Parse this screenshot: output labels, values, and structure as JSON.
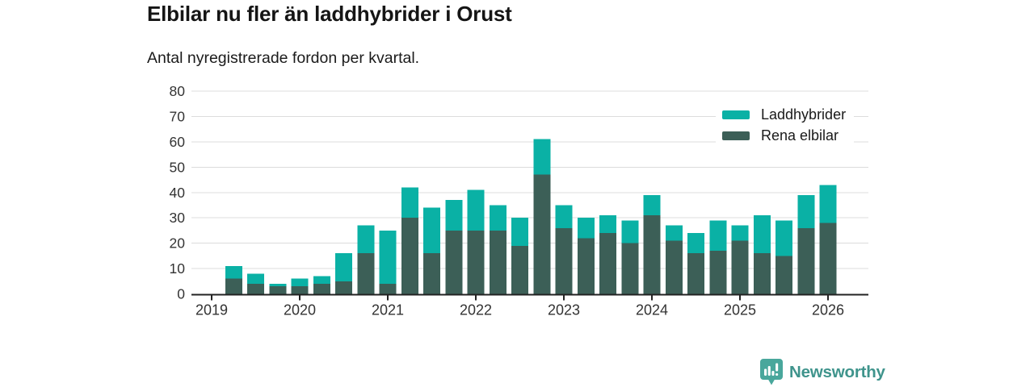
{
  "header": {
    "title": "Elbilar nu fler än laddhybrider i Orust",
    "subtitle": "Antal nyregistrerade fordon per kvartal."
  },
  "legend": {
    "items": [
      {
        "label": "Laddhybrider",
        "color": "#0AB1A5"
      },
      {
        "label": "Rena elbilar",
        "color": "#3C5F57"
      }
    ]
  },
  "footer": {
    "brand": "Newsworthy"
  },
  "colors": {
    "laddhybrider": "#0AB1A5",
    "rena_elbilar": "#3C5F57",
    "grid": "#DCDCDC",
    "axis": "#222222",
    "axis_text": "#333333",
    "title_text": "#151515",
    "brand_text": "#3F948C",
    "brand_badge": "#49A79C"
  },
  "chart_data": {
    "type": "bar",
    "stacked": true,
    "title": "Elbilar nu fler än laddhybrider i Orust",
    "subtitle": "Antal nyregistrerade fordon per kvartal.",
    "xlabel": "",
    "ylabel": "",
    "ylim": [
      0,
      80
    ],
    "yticks": [
      0,
      10,
      20,
      30,
      40,
      50,
      60,
      70,
      80
    ],
    "xticks": [
      "2019",
      "2020",
      "2021",
      "2022",
      "2023",
      "2024",
      "2025",
      "2026"
    ],
    "grid": true,
    "legend_position": "top-right",
    "categories": [
      "2019 Q2",
      "2019 Q3",
      "2019 Q4",
      "2020 Q1",
      "2020 Q2",
      "2020 Q3",
      "2020 Q4",
      "2021 Q1",
      "2021 Q2",
      "2021 Q3",
      "2021 Q4",
      "2022 Q1",
      "2022 Q2",
      "2022 Q3",
      "2022 Q4",
      "2023 Q1",
      "2023 Q2",
      "2023 Q3",
      "2023 Q4",
      "2024 Q1",
      "2024 Q2",
      "2024 Q3",
      "2024 Q4",
      "2025 Q1",
      "2025 Q2",
      "2025 Q3",
      "2025 Q4",
      "2026 Q1"
    ],
    "series": [
      {
        "name": "Rena elbilar",
        "color": "#3C5F57",
        "values": [
          6,
          4,
          3,
          3,
          4,
          5,
          16,
          4,
          30,
          16,
          25,
          25,
          25,
          19,
          47,
          26,
          22,
          24,
          20,
          31,
          21,
          16,
          17,
          21,
          16,
          15,
          26,
          28
        ]
      },
      {
        "name": "Laddhybrider",
        "color": "#0AB1A5",
        "values": [
          5,
          4,
          1,
          3,
          3,
          11,
          11,
          21,
          12,
          18,
          12,
          16,
          10,
          11,
          14,
          9,
          8,
          7,
          9,
          8,
          6,
          8,
          12,
          6,
          15,
          14,
          13,
          15
        ]
      }
    ],
    "totals": [
      11,
      8,
      4,
      6,
      7,
      16,
      27,
      25,
      42,
      34,
      37,
      41,
      35,
      30,
      61,
      35,
      30,
      31,
      29,
      39,
      27,
      24,
      29,
      27,
      31,
      29,
      39,
      43
    ]
  }
}
